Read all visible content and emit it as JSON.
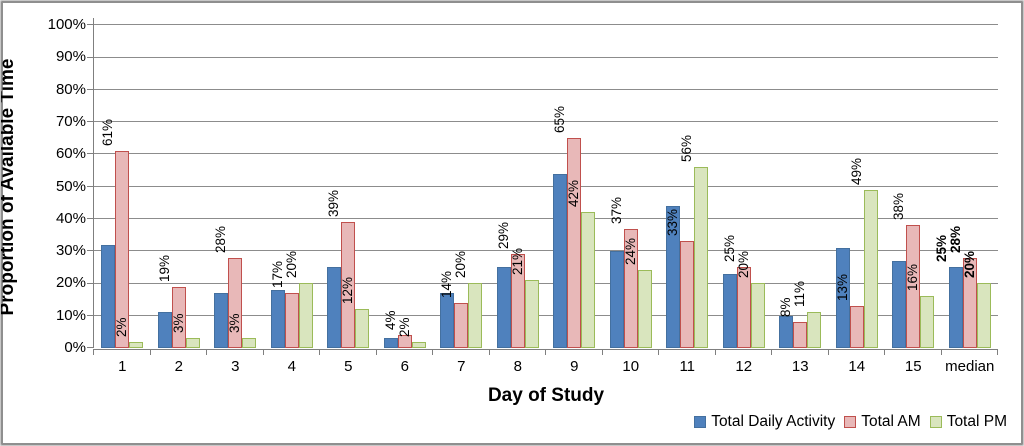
{
  "colors": {
    "daily_fill": "#4f81bd",
    "daily_border": "#44709f",
    "am_fill": "#e8b8b8",
    "am_border": "#c0504d",
    "pm_fill": "#d9e5be",
    "pm_border": "#9bbb59",
    "gridline": "#8c8c8c",
    "axis": "#7f7f7f",
    "text": "#000000"
  },
  "chart_data": {
    "type": "bar",
    "title": "",
    "xlabel": "Day of Study",
    "ylabel": "Proportion of Available Time",
    "ylim": [
      0,
      100
    ],
    "grid": true,
    "legend_position": "bottom-right",
    "ytick_labels": [
      "0%",
      "10%",
      "20%",
      "30%",
      "40%",
      "50%",
      "60%",
      "70%",
      "80%",
      "90%",
      "100%"
    ],
    "categories": [
      "1",
      "2",
      "3",
      "4",
      "5",
      "6",
      "7",
      "8",
      "9",
      "10",
      "11",
      "12",
      "13",
      "14",
      "15",
      "median"
    ],
    "series": [
      {
        "name": "Total Daily Activity",
        "values": [
          32,
          11,
          17,
          18,
          25,
          3,
          17,
          25,
          54,
          30,
          44,
          23,
          10,
          31,
          27,
          25
        ],
        "data_labels": [
          null,
          null,
          null,
          null,
          null,
          null,
          null,
          null,
          null,
          null,
          null,
          null,
          null,
          null,
          null,
          "25%"
        ]
      },
      {
        "name": "Total AM",
        "values": [
          61,
          19,
          28,
          17,
          39,
          4,
          14,
          29,
          65,
          37,
          33,
          25,
          8,
          13,
          38,
          28
        ],
        "data_labels": [
          "61%",
          "19%",
          "28%",
          "17%",
          "39%",
          "4%",
          "14%",
          "29%",
          "65%",
          "37%",
          "33%",
          "25%",
          "8%",
          "13%",
          "38%",
          "28%"
        ]
      },
      {
        "name": "Total PM",
        "values": [
          2,
          3,
          3,
          20,
          12,
          2,
          20,
          21,
          42,
          24,
          56,
          20,
          11,
          49,
          16,
          20
        ],
        "data_labels": [
          "2%",
          "3%",
          "3%",
          "20%",
          "12%",
          "2%",
          "20%",
          "21%",
          "42%",
          "24%",
          "56%",
          "20%",
          "11%",
          "49%",
          "16%",
          "20%"
        ]
      }
    ],
    "bold_label_category": "median"
  }
}
